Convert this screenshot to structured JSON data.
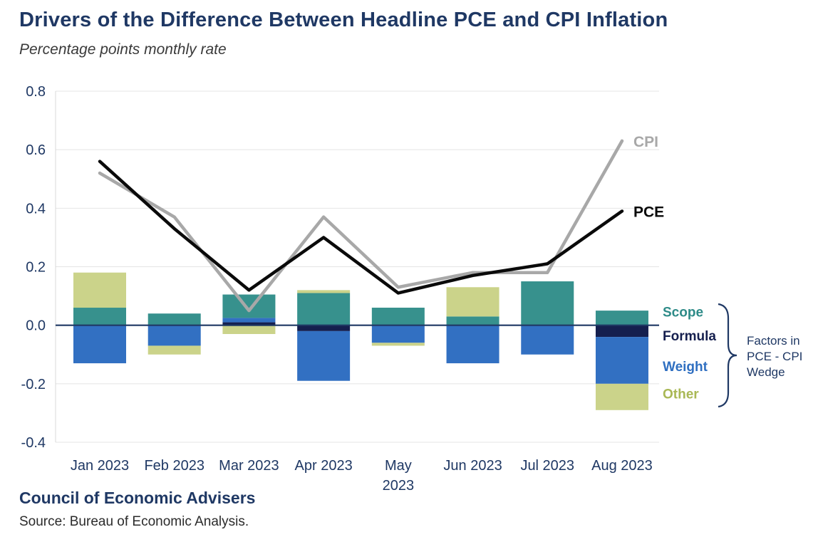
{
  "page": {
    "title": "Drivers of the Difference Between Headline PCE and CPI Inflation",
    "subtitle": "Percentage points monthly rate",
    "footer_org": "Council of Economic Advisers",
    "source_note": "Source: Bureau of Economic Analysis."
  },
  "chart_data": {
    "type": "combo-stacked-bar-line",
    "title": "Drivers of the Difference Between Headline PCE and CPI Inflation",
    "subtitle": "Percentage points monthly rate",
    "categories": [
      "Jan 2023",
      "Feb 2023",
      "Mar 2023",
      "Apr 2023",
      "May 2023",
      "Jun 2023",
      "Jul 2023",
      "Aug 2023"
    ],
    "x_labels": [
      [
        "Jan 2023"
      ],
      [
        "Feb 2023"
      ],
      [
        "Mar 2023"
      ],
      [
        "Apr 2023"
      ],
      [
        "May",
        "2023"
      ],
      [
        "Jun 2023"
      ],
      [
        "Jul 2023"
      ],
      [
        "Aug 2023"
      ]
    ],
    "ylim": [
      -0.4,
      0.8
    ],
    "yticks": [
      0.8,
      0.6,
      0.4,
      0.2,
      0.0,
      -0.2,
      -0.4
    ],
    "ytick_labels": [
      "0.8",
      "0.6",
      "0.4",
      "0.2",
      "0.0",
      "-0.2",
      "-0.4"
    ],
    "grid": true,
    "grid_color": "#e4e4e4",
    "axis_color": "#d9d9d9",
    "zero_line_color": "#1f3864",
    "text_color": "#1f3864",
    "stack_order_from_zero": [
      "Formula",
      "Weight",
      "Scope",
      "Other"
    ],
    "bar_series": [
      {
        "name": "Scope",
        "color": "#37918d",
        "label_color": "#2e8b88",
        "values": [
          0.06,
          0.04,
          0.08,
          0.11,
          0.06,
          0.03,
          0.15,
          0.05
        ]
      },
      {
        "name": "Formula",
        "color": "#151f4e",
        "label_color": "#151f4e",
        "values": [
          0,
          0,
          0.01,
          -0.02,
          0,
          0,
          0,
          -0.04
        ]
      },
      {
        "name": "Weight",
        "color": "#3270c2",
        "label_color": "#2f6fc1",
        "values": [
          -0.13,
          -0.07,
          0.015,
          -0.17,
          -0.06,
          -0.13,
          -0.1,
          -0.16
        ]
      },
      {
        "name": "Other",
        "color": "#cbd38a",
        "label_color": "#a9b855",
        "values": [
          0.12,
          -0.03,
          -0.03,
          0.01,
          -0.01,
          0.1,
          0,
          -0.09
        ]
      }
    ],
    "line_series": [
      {
        "name": "CPI",
        "color": "#a8a8a8",
        "values": [
          0.52,
          0.37,
          0.05,
          0.37,
          0.13,
          0.18,
          0.18,
          0.63
        ]
      },
      {
        "name": "PCE",
        "color": "#0a0a0a",
        "values": [
          0.56,
          0.33,
          0.12,
          0.3,
          0.11,
          0.17,
          0.21,
          0.39
        ]
      }
    ],
    "legend": {
      "position": "right",
      "labels": [
        {
          "text": "Scope",
          "color": "#2e8b88"
        },
        {
          "text": "Formula",
          "color": "#151f4e"
        },
        {
          "text": "Weight",
          "color": "#2f6fc1"
        },
        {
          "text": "Other",
          "color": "#a9b855"
        }
      ],
      "brace_caption": [
        "Factors in",
        "PCE - CPI",
        "Wedge"
      ]
    }
  }
}
